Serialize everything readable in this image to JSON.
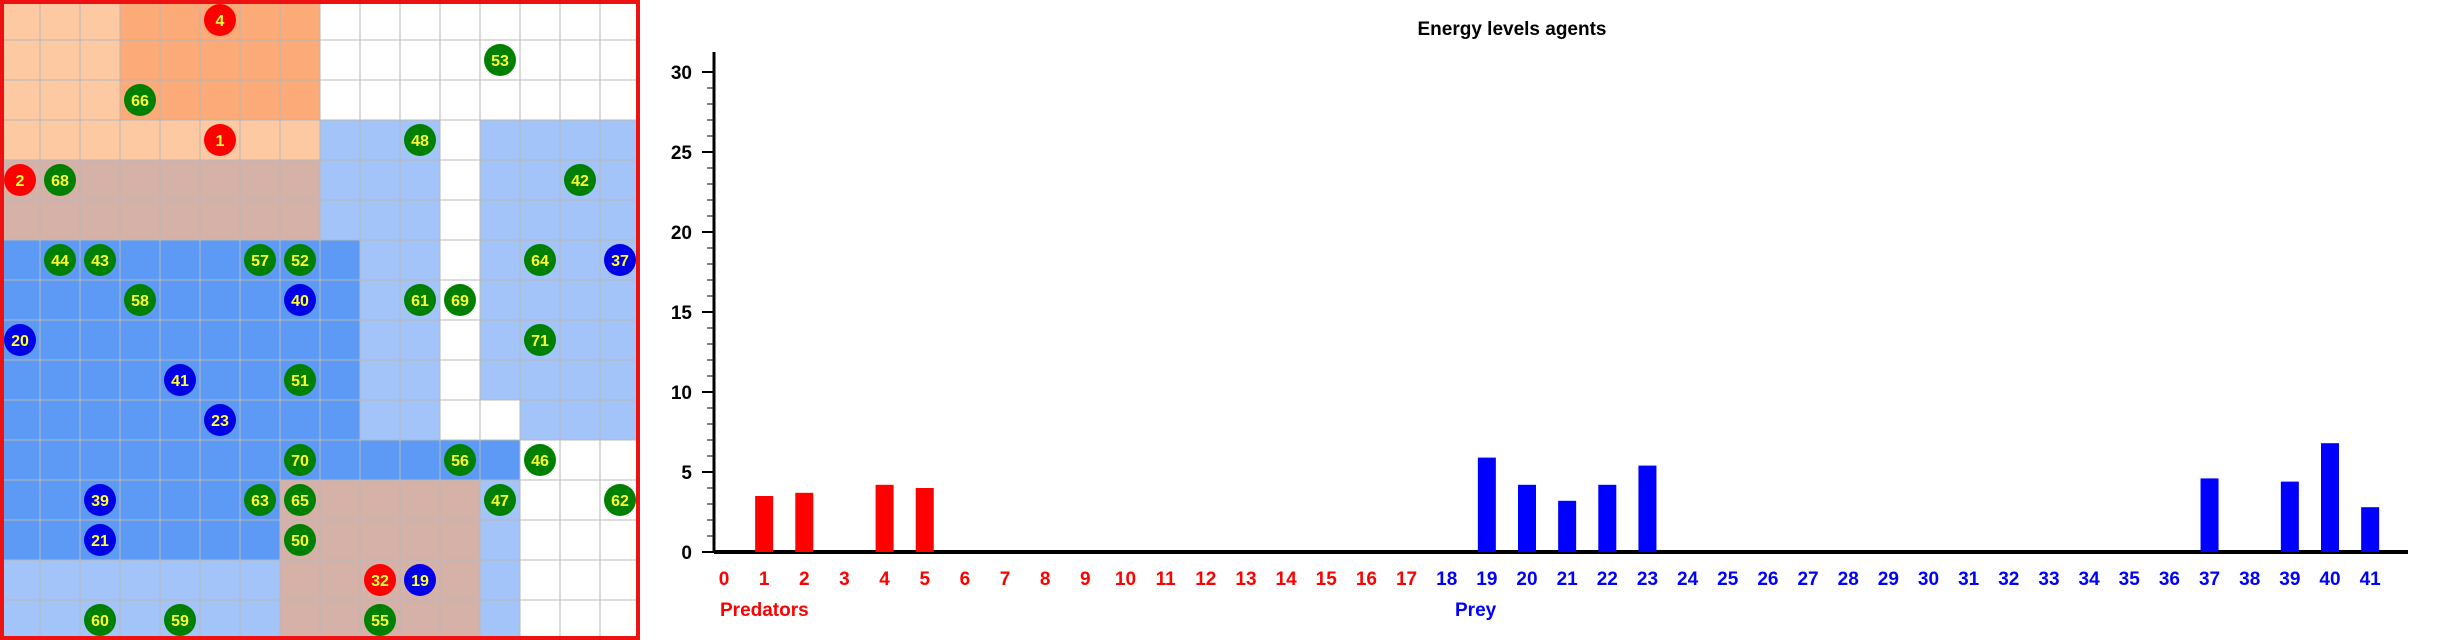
{
  "grid": {
    "cols": 16,
    "rows": 16,
    "colors": {
      "empty": "#ffffff",
      "grid_line": "#b8b8b8",
      "border": "#ee1111",
      "blue": "#a3c4f8",
      "blue_dark": "#5c9af5",
      "orange_light": "#fdc9a3",
      "orange_dark": "#fbaa78",
      "brown": "#d6b1a8",
      "predator": "#ff0000",
      "prey": "#0000e6",
      "plant": "#008000",
      "label": "#ffff33"
    },
    "regions": [
      {
        "type": "blue",
        "col": 0,
        "row": 3,
        "w": 16,
        "h": 13
      },
      {
        "type": "blue_dark",
        "col": 0,
        "row": 6,
        "w": 9,
        "h": 8
      },
      {
        "type": "blue_dark",
        "col": 3,
        "row": 5,
        "w": 5,
        "h": 2
      },
      {
        "type": "blue_dark",
        "col": 8,
        "row": 11,
        "w": 6,
        "h": 1
      },
      {
        "type": "empty",
        "col": 11,
        "row": 3,
        "w": 1,
        "h": 4
      },
      {
        "type": "empty",
        "col": 11,
        "row": 7,
        "w": 1,
        "h": 3
      },
      {
        "type": "empty",
        "col": 11,
        "row": 10,
        "w": 2,
        "h": 1
      },
      {
        "type": "empty",
        "col": 13,
        "row": 11,
        "w": 3,
        "h": 5
      },
      {
        "type": "empty",
        "col": 14,
        "row": 12,
        "w": 2,
        "h": 4
      },
      {
        "type": "orange_light",
        "col": 0,
        "row": 0,
        "w": 8,
        "h": 5
      },
      {
        "type": "orange_dark",
        "col": 3,
        "row": 0,
        "w": 5,
        "h": 3
      },
      {
        "type": "brown",
        "col": 0,
        "row": 4,
        "w": 8,
        "h": 2
      },
      {
        "type": "brown",
        "col": 7,
        "row": 12,
        "w": 5,
        "h": 4
      }
    ],
    "agents": [
      {
        "label": "4",
        "kind": "predator",
        "col": 5,
        "row": 0
      },
      {
        "label": "53",
        "kind": "plant",
        "col": 12,
        "row": 1
      },
      {
        "label": "66",
        "kind": "plant",
        "col": 3,
        "row": 2
      },
      {
        "label": "1",
        "kind": "predator",
        "col": 5,
        "row": 3
      },
      {
        "label": "48",
        "kind": "plant",
        "col": 10,
        "row": 3
      },
      {
        "label": "2",
        "kind": "predator",
        "col": 0,
        "row": 4
      },
      {
        "label": "68",
        "kind": "plant",
        "col": 1,
        "row": 4
      },
      {
        "label": "42",
        "kind": "plant",
        "col": 14,
        "row": 4
      },
      {
        "label": "44",
        "kind": "plant",
        "col": 1,
        "row": 6
      },
      {
        "label": "43",
        "kind": "plant",
        "col": 2,
        "row": 6
      },
      {
        "label": "57",
        "kind": "plant",
        "col": 6,
        "row": 6
      },
      {
        "label": "52",
        "kind": "plant",
        "col": 7,
        "row": 6
      },
      {
        "label": "64",
        "kind": "plant",
        "col": 13,
        "row": 6
      },
      {
        "label": "37",
        "kind": "prey",
        "col": 15,
        "row": 6
      },
      {
        "label": "58",
        "kind": "plant",
        "col": 3,
        "row": 7
      },
      {
        "label": "40",
        "kind": "prey",
        "col": 7,
        "row": 7
      },
      {
        "label": "61",
        "kind": "plant",
        "col": 10,
        "row": 7
      },
      {
        "label": "69",
        "kind": "plant",
        "col": 11,
        "row": 7
      },
      {
        "label": "20",
        "kind": "prey",
        "col": 0,
        "row": 8
      },
      {
        "label": "71",
        "kind": "plant",
        "col": 13,
        "row": 8
      },
      {
        "label": "41",
        "kind": "prey",
        "col": 4,
        "row": 9
      },
      {
        "label": "51",
        "kind": "plant",
        "col": 7,
        "row": 9
      },
      {
        "label": "23",
        "kind": "prey",
        "col": 5,
        "row": 10
      },
      {
        "label": "70",
        "kind": "plant",
        "col": 7,
        "row": 11
      },
      {
        "label": "56",
        "kind": "plant",
        "col": 11,
        "row": 11
      },
      {
        "label": "46",
        "kind": "plant",
        "col": 13,
        "row": 11
      },
      {
        "label": "39",
        "kind": "prey",
        "col": 2,
        "row": 12
      },
      {
        "label": "63",
        "kind": "plant",
        "col": 6,
        "row": 12
      },
      {
        "label": "65",
        "kind": "plant",
        "col": 7,
        "row": 12
      },
      {
        "label": "47",
        "kind": "plant",
        "col": 12,
        "row": 12
      },
      {
        "label": "62",
        "kind": "plant",
        "col": 15,
        "row": 12
      },
      {
        "label": "21",
        "kind": "prey",
        "col": 2,
        "row": 13
      },
      {
        "label": "50",
        "kind": "plant",
        "col": 7,
        "row": 13
      },
      {
        "label": "32",
        "kind": "predator",
        "col": 9,
        "row": 14
      },
      {
        "label": "19",
        "kind": "prey",
        "col": 10,
        "row": 14
      },
      {
        "label": "60",
        "kind": "plant",
        "col": 2,
        "row": 15
      },
      {
        "label": "59",
        "kind": "plant",
        "col": 4,
        "row": 15
      },
      {
        "label": "55",
        "kind": "plant",
        "col": 9,
        "row": 15
      }
    ]
  },
  "chart_data": {
    "type": "bar",
    "title": "Energy levels agents",
    "xlabel": "",
    "ylabel": "",
    "ylim": [
      0,
      30
    ],
    "yticks": [
      0,
      5,
      10,
      15,
      20,
      25,
      30
    ],
    "categories": [
      "0",
      "1",
      "2",
      "3",
      "4",
      "5",
      "6",
      "7",
      "8",
      "9",
      "10",
      "11",
      "12",
      "13",
      "14",
      "15",
      "16",
      "17",
      "18",
      "19",
      "20",
      "21",
      "22",
      "23",
      "24",
      "25",
      "26",
      "27",
      "28",
      "29",
      "30",
      "31",
      "32",
      "33",
      "34",
      "35",
      "36",
      "37",
      "38",
      "39",
      "40",
      "41"
    ],
    "values": [
      0,
      3.5,
      3.7,
      0,
      4.2,
      4.0,
      0,
      0,
      0,
      0,
      0,
      0,
      0,
      0,
      0,
      0,
      0,
      0,
      0,
      5.9,
      4.2,
      3.2,
      4.2,
      5.4,
      0,
      0,
      0,
      0,
      0,
      0,
      0,
      0,
      0,
      0,
      0,
      0,
      0,
      4.6,
      0,
      4.4,
      6.8,
      2.8
    ],
    "predator_count": 18,
    "groups": [
      {
        "label": "Predators",
        "color": "#ff0000"
      },
      {
        "label": "Prey",
        "color": "#0000ff"
      }
    ]
  }
}
